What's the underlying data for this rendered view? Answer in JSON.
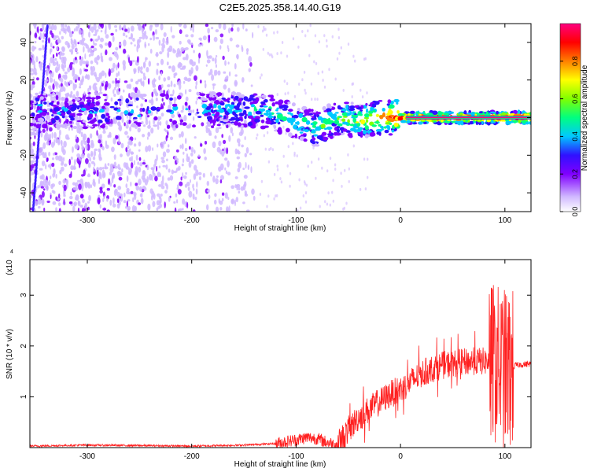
{
  "title": "C2E5.2025.358.14.40.G19",
  "chart_data": [
    {
      "type": "heatmap",
      "xlabel": "Height of straight line (km)",
      "ylabel": "Frequency (Hz)",
      "xlim": [
        -355,
        125
      ],
      "ylim": [
        -50,
        50
      ],
      "xticks": [
        -300,
        -200,
        -100,
        0,
        100
      ],
      "yticks": [
        -40,
        -20,
        0,
        20,
        40
      ],
      "colorbar": {
        "label": "Normalized spectral amplitude",
        "range": [
          0,
          1
        ],
        "ticks": [
          0.0,
          0.2,
          0.4,
          0.6,
          0.8
        ],
        "tick_labels": [
          "0.0",
          "0.2",
          "0.4",
          "0.6",
          "0.8"
        ],
        "colormap": [
          "#ffffff",
          "#d0b8ff",
          "#8000ff",
          "#3010ff",
          "#00c8ff",
          "#00ff80",
          "#80ff00",
          "#ffff00",
          "#ff8000",
          "#ff0000",
          "#ff0080"
        ]
      },
      "ridge": [
        {
          "x": -350,
          "y": 4,
          "amp": 0.35
        },
        {
          "x": -330,
          "y": 4,
          "amp": 0.3
        },
        {
          "x": -300,
          "y": 3,
          "amp": 0.35
        },
        {
          "x": -185,
          "y": 4,
          "amp": 0.35
        },
        {
          "x": -150,
          "y": 4,
          "amp": 0.4
        },
        {
          "x": -125,
          "y": 3,
          "amp": 0.45
        },
        {
          "x": -100,
          "y": -2,
          "amp": 0.45
        },
        {
          "x": -80,
          "y": -6,
          "amp": 0.5
        },
        {
          "x": -60,
          "y": 0,
          "amp": 0.55
        },
        {
          "x": -40,
          "y": -2,
          "amp": 0.6
        },
        {
          "x": -20,
          "y": 0,
          "amp": 0.75
        },
        {
          "x": 0,
          "y": 0,
          "amp": 0.9
        },
        {
          "x": 50,
          "y": 0,
          "amp": 0.95
        },
        {
          "x": 90,
          "y": 0,
          "amp": 0.9
        },
        {
          "x": 125,
          "y": 0,
          "amp": 0.95
        }
      ]
    },
    {
      "type": "line",
      "xlabel": "Height of straight line (km)",
      "ylabel": "SNR (10 * v/v)",
      "y_multiplier": "(x10",
      "y_exponent": "4",
      "xlim": [
        -355,
        125
      ],
      "ylim": [
        0,
        3.7
      ],
      "xticks": [
        -300,
        -200,
        -100,
        0,
        100
      ],
      "yticks": [
        1,
        2,
        3
      ],
      "color": "#ff2020",
      "series": [
        {
          "x": [
            -355,
            -300,
            -200,
            -150,
            -120,
            -100,
            -90,
            -80,
            -70,
            -60,
            -50,
            -40,
            -30,
            -20,
            -10,
            0,
            10,
            20,
            30,
            40,
            50,
            60,
            70,
            80,
            85,
            90,
            95,
            100,
            105,
            110,
            125
          ],
          "y": [
            0.03,
            0.05,
            0.03,
            0.05,
            0.08,
            0.15,
            0.2,
            0.18,
            0.1,
            0.05,
            0.35,
            0.6,
            0.75,
            0.9,
            1.05,
            1.15,
            1.3,
            1.45,
            1.55,
            1.62,
            1.65,
            1.68,
            1.7,
            1.7,
            1.68,
            1.65,
            1.6,
            1.55,
            1.5,
            1.62,
            1.65
          ]
        }
      ]
    }
  ]
}
